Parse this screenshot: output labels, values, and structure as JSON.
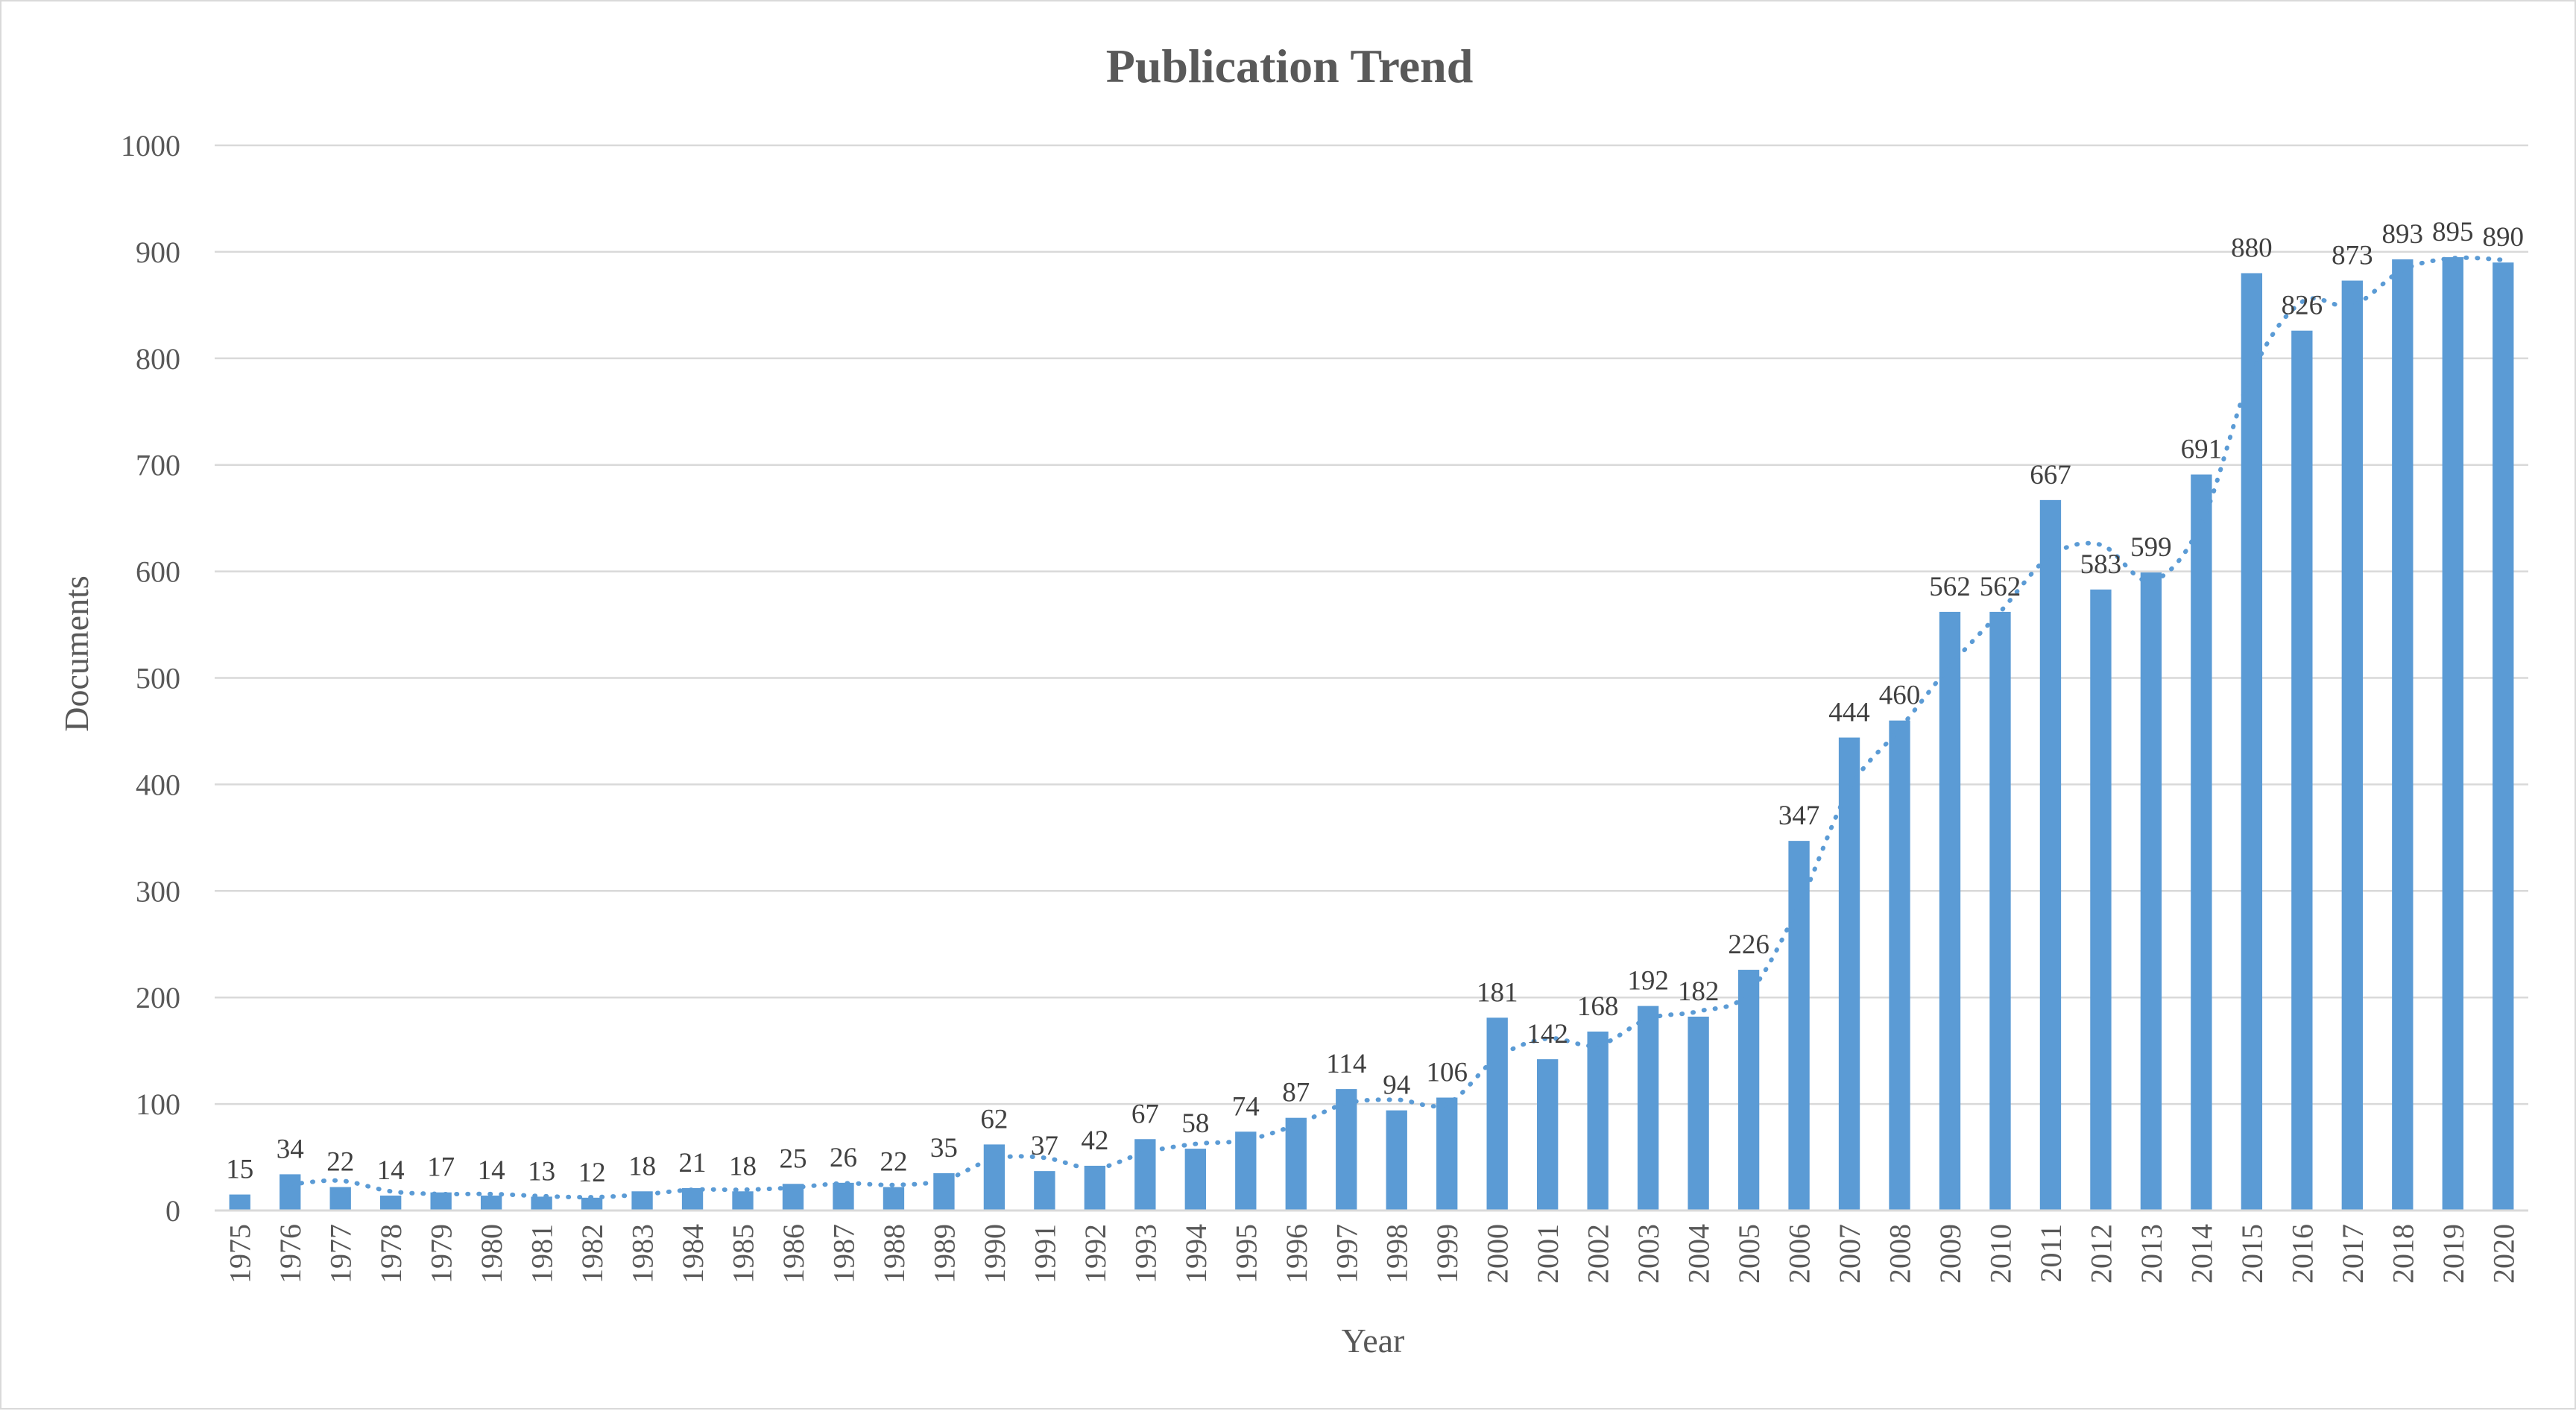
{
  "chart_data": {
    "type": "bar",
    "title": "Publication Trend",
    "xlabel": "Year",
    "ylabel": "Documents",
    "ylim": [
      0,
      1000
    ],
    "yticks": [
      0,
      100,
      200,
      300,
      400,
      500,
      600,
      700,
      800,
      900,
      1000
    ],
    "grid": true,
    "legend": "none",
    "categories": [
      "1975",
      "1976",
      "1977",
      "1978",
      "1979",
      "1980",
      "1981",
      "1982",
      "1983",
      "1984",
      "1985",
      "1986",
      "1987",
      "1988",
      "1989",
      "1990",
      "1991",
      "1992",
      "1993",
      "1994",
      "1995",
      "1996",
      "1997",
      "1998",
      "1999",
      "2000",
      "2001",
      "2002",
      "2003",
      "2004",
      "2005",
      "2006",
      "2007",
      "2008",
      "2009",
      "2010",
      "2011",
      "2012",
      "2013",
      "2014",
      "2015",
      "2016",
      "2017",
      "2018",
      "2019",
      "2020"
    ],
    "values": [
      15,
      34,
      22,
      14,
      17,
      14,
      13,
      12,
      18,
      21,
      18,
      25,
      26,
      22,
      35,
      62,
      37,
      42,
      67,
      58,
      74,
      87,
      114,
      94,
      106,
      181,
      142,
      168,
      192,
      182,
      226,
      347,
      444,
      460,
      562,
      562,
      667,
      583,
      599,
      691,
      880,
      826,
      873,
      893,
      895,
      890
    ],
    "trendline": "2-period moving average (dotted)",
    "colors": {
      "bar": "#5b9bd5",
      "trendline": "#5b9bd5",
      "grid": "#d9d9d9",
      "text": "#595959"
    }
  }
}
